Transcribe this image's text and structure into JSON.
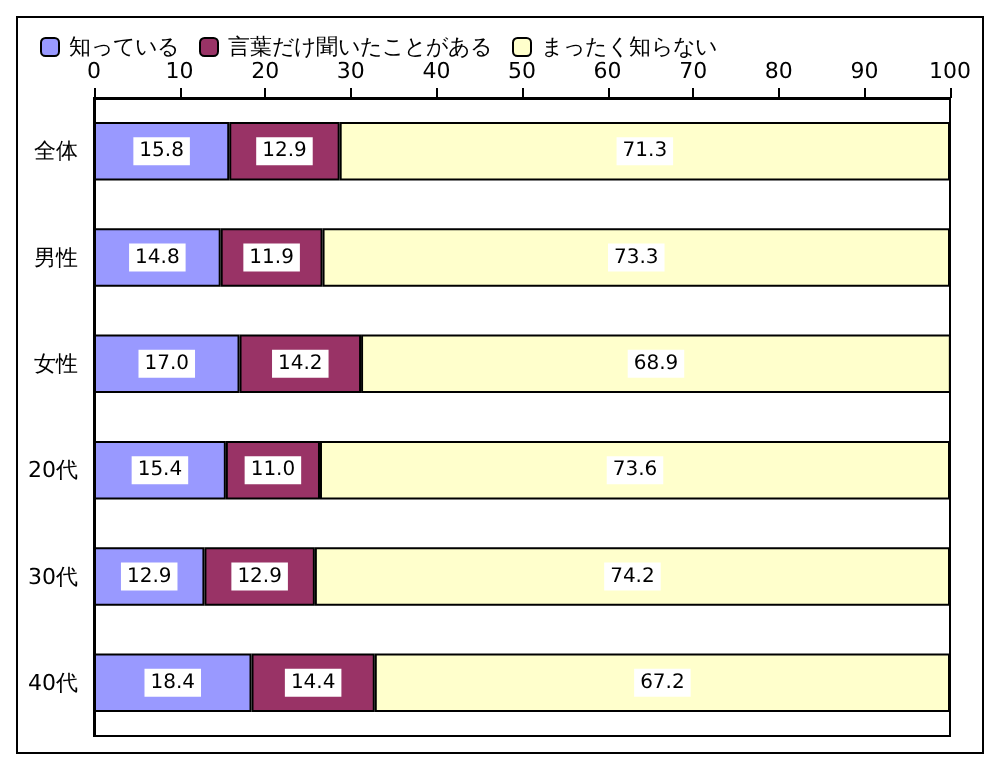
{
  "chart_data": {
    "type": "bar",
    "orientation": "horizontal",
    "stacked": true,
    "categories": [
      "全体",
      "男性",
      "女性",
      "20代",
      "30代",
      "40代"
    ],
    "series": [
      {
        "name": "知っている",
        "color": "#9999ff",
        "values": [
          15.8,
          14.8,
          17.0,
          15.4,
          12.9,
          18.4
        ],
        "value_labels": [
          "15.8",
          "14.8",
          "17.0",
          "15.4",
          "12.9",
          "18.4"
        ]
      },
      {
        "name": "言葉だけ聞いたことがある",
        "color": "#993366",
        "values": [
          12.9,
          11.9,
          14.2,
          11.0,
          12.9,
          14.4
        ],
        "value_labels": [
          "12.9",
          "11.9",
          "14.2",
          "11.0",
          "12.9",
          "14.4"
        ]
      },
      {
        "name": "まったく知らない",
        "color": "#ffffcc",
        "values": [
          71.3,
          73.3,
          68.9,
          73.6,
          74.2,
          67.2
        ],
        "value_labels": [
          "71.3",
          "73.3",
          "68.9",
          "73.6",
          "74.2",
          "67.2"
        ]
      }
    ],
    "xlim": [
      0,
      100
    ],
    "xticks": [
      0,
      10,
      20,
      30,
      40,
      50,
      60,
      70,
      80,
      90,
      100
    ],
    "grid": false,
    "legend": "top left"
  }
}
